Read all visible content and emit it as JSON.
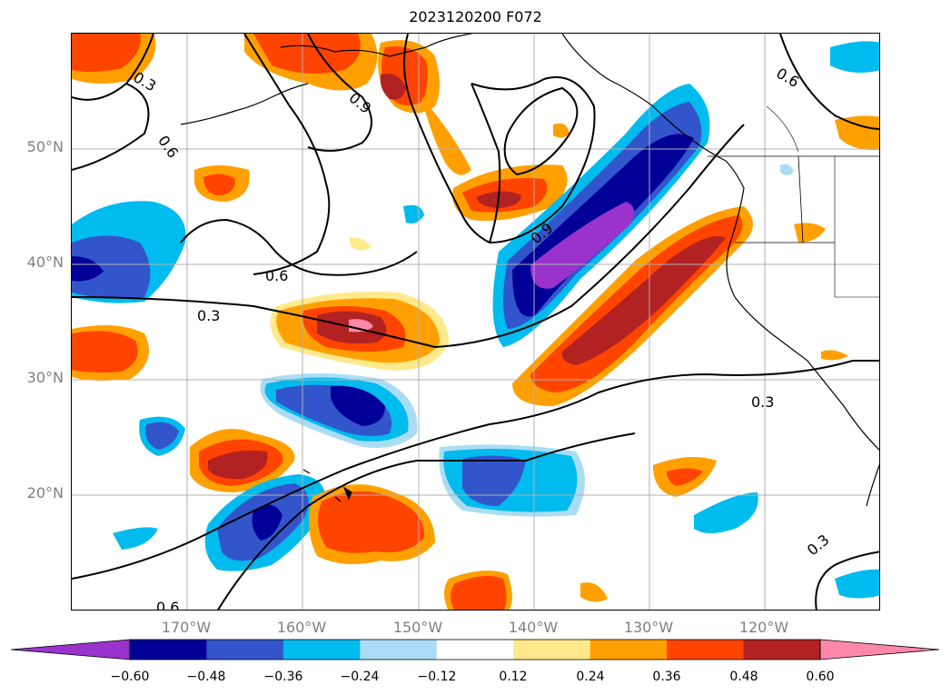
{
  "title": "2023120200 F072",
  "lat_labels": [
    "50°N",
    "40°N",
    "30°N",
    "20°N"
  ],
  "lon_labels": [
    "170°W",
    "160°W",
    "150°W",
    "140°W",
    "130°W",
    "120°W"
  ],
  "contour_labels": [
    "0.3",
    "0.6",
    "0.9",
    "0.6",
    "0.6",
    "0.3",
    "0.9",
    "0.3",
    "0.3",
    "0.6"
  ],
  "colorbar": {
    "tick_labels": [
      "−0.60",
      "−0.48",
      "−0.36",
      "−0.24",
      "−0.12",
      "0.12",
      "0.24",
      "0.36",
      "0.48",
      "0.60"
    ],
    "colors": [
      "#9933cc",
      "#000099",
      "#3355cc",
      "#00bbee",
      "#aaddf5",
      "#ffffff",
      "#ffe98a",
      "#ffa000",
      "#ff4400",
      "#b22222",
      "#ff88aa"
    ]
  }
}
